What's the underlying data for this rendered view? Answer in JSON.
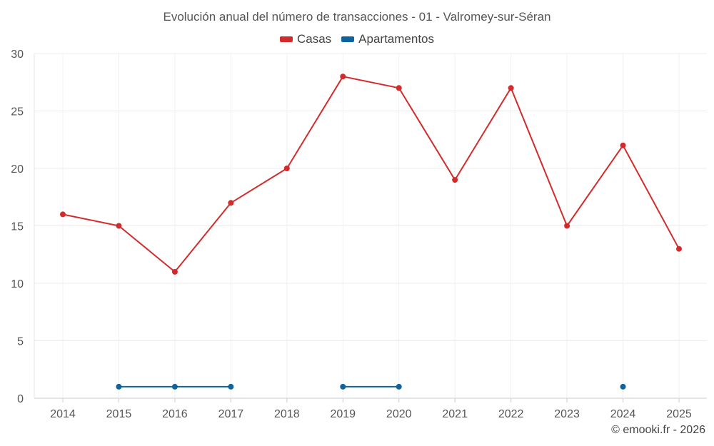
{
  "chart_data": {
    "type": "line",
    "title": "Evolución anual del número de transacciones - 01 - Valromey-sur-Séran",
    "xlabel": "",
    "ylabel": "",
    "ylim": [
      0,
      30
    ],
    "yticks": [
      0,
      5,
      10,
      15,
      20,
      25,
      30
    ],
    "categories": [
      "2014",
      "2015",
      "2016",
      "2017",
      "2018",
      "2019",
      "2020",
      "2021",
      "2022",
      "2023",
      "2024",
      "2025"
    ],
    "series": [
      {
        "name": "Casas",
        "color": "#d32b2b",
        "values": [
          16,
          15,
          11,
          17,
          20,
          28,
          27,
          19,
          27,
          15,
          22,
          13
        ]
      },
      {
        "name": "Apartamentos",
        "color": "#0f64a0",
        "values": [
          null,
          1,
          1,
          1,
          null,
          1,
          1,
          null,
          null,
          null,
          1,
          null
        ]
      }
    ],
    "legend_position": "top-center",
    "grid": true
  },
  "credit": "© emooki.fr - 2026"
}
